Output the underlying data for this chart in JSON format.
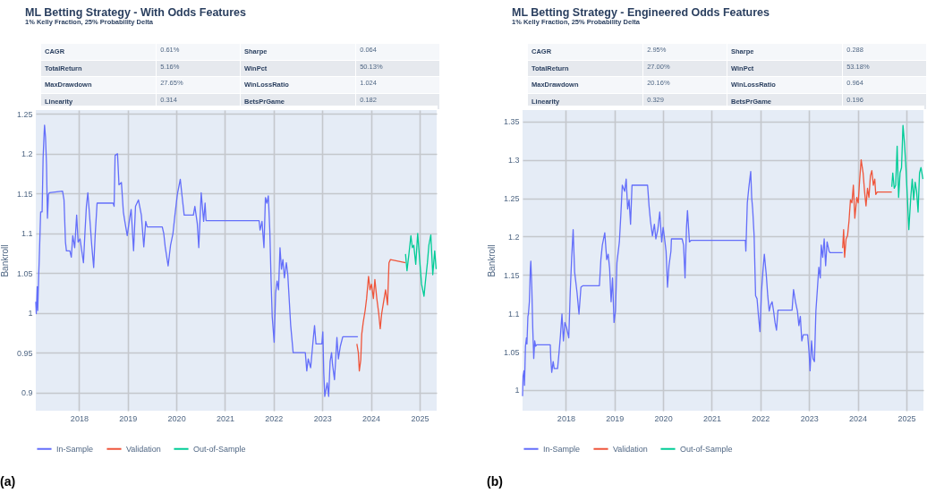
{
  "chart_data": [
    {
      "type": "line",
      "title": "ML Betting Strategy - With Odds Features",
      "subtitle": "1% Kelly Fraction, 25% Probability Delta",
      "ylabel": "Bankroll",
      "annotations": [
        "CAGR",
        "0.61%",
        "Sharpe",
        "0.064",
        "TotalReturn",
        "5.16%",
        "WinPct",
        "50.13%",
        "MaxDrawdown",
        "27.65%",
        "WinLossRatio",
        "1.024",
        "Linearity",
        "0.314",
        "BetsPrGame",
        "0.182",
        "(a)"
      ],
      "xlim": [
        2017.11,
        2025.35
      ],
      "xticks": [
        2018,
        2019,
        2020,
        2021,
        2022,
        2023,
        2024,
        2025
      ],
      "ylim": [
        0.877,
        1.255
      ],
      "yticks": [
        0.9,
        0.95,
        1,
        1.05,
        1.1,
        1.15,
        1.2,
        1.25
      ],
      "grid": true,
      "legend": "bottom",
      "series": [
        {
          "name": "In-Sample",
          "color": "#636efa",
          "x": [
            2017.11,
            2017.12,
            2017.14,
            2017.15,
            2017.17,
            2017.18,
            2017.21,
            2017.24,
            2017.26,
            2017.28,
            2017.29,
            2017.31,
            2017.33,
            2017.35,
            2017.37,
            2017.39,
            2017.66,
            2017.69,
            2017.72,
            2017.74,
            2017.81,
            2017.84,
            2017.87,
            2017.91,
            2017.95,
            2017.98,
            2018.02,
            2018.09,
            2018.12,
            2018.15,
            2018.18,
            2018.21,
            2018.26,
            2018.3,
            2018.33,
            2018.37,
            2018.7,
            2018.72,
            2018.74,
            2018.79,
            2018.82,
            2018.87,
            2018.91,
            2018.94,
            2018.99,
            2019.04,
            2019.07,
            2019.12,
            2019.16,
            2019.22,
            2019.28,
            2019.33,
            2019.37,
            2019.4,
            2019.71,
            2019.74,
            2019.77,
            2019.83,
            2019.88,
            2019.93,
            2019.97,
            2020.02,
            2020.08,
            2020.12,
            2020.16,
            2020.35,
            2020.38,
            2020.43,
            2020.46,
            2020.51,
            2020.56,
            2020.59,
            2020.61,
            2021.7,
            2021.72,
            2021.76,
            2021.8,
            2021.83,
            2021.86,
            2021.89,
            2021.92,
            2021.95,
            2021.97,
            2022.01,
            2022.04,
            2022.07,
            2022.1,
            2022.13,
            2022.16,
            2022.19,
            2022.22,
            2022.26,
            2022.29,
            2022.35,
            2022.4,
            2022.65,
            2022.68,
            2022.71,
            2022.76,
            2022.81,
            2022.84,
            2022.87,
            2022.99,
            2023.01,
            2023.03,
            2023.05,
            2023.1,
            2023.13,
            2023.16,
            2023.19,
            2023.21,
            2023.25,
            2023.3,
            2023.33,
            2023.37,
            2023.42,
            2023.73
          ],
          "values": [
            1.014,
            0.999,
            1.033,
            1.003,
            1.048,
            1.065,
            1.127,
            1.127,
            1.194,
            1.224,
            1.236,
            1.221,
            1.187,
            1.119,
            1.149,
            1.151,
            1.153,
            1.142,
            1.089,
            1.078,
            1.078,
            1.07,
            1.097,
            1.082,
            1.123,
            1.089,
            1.093,
            1.063,
            1.1,
            1.134,
            1.151,
            1.127,
            1.085,
            1.057,
            1.097,
            1.138,
            1.138,
            1.134,
            1.198,
            1.2,
            1.161,
            1.164,
            1.127,
            1.115,
            1.097,
            1.119,
            1.13,
            1.078,
            1.134,
            1.142,
            1.123,
            1.083,
            1.115,
            1.108,
            1.108,
            1.1,
            1.083,
            1.059,
            1.085,
            1.1,
            1.123,
            1.149,
            1.168,
            1.145,
            1.123,
            1.123,
            1.134,
            1.112,
            1.082,
            1.151,
            1.115,
            1.138,
            1.116,
            1.116,
            1.104,
            1.115,
            1.082,
            1.145,
            1.138,
            1.147,
            1.104,
            1.033,
            0.995,
            0.963,
            1.025,
            1.04,
            1.029,
            1.082,
            1.055,
            1.067,
            1.044,
            1.063,
            1.048,
            0.984,
            0.95,
            0.95,
            0.927,
            0.942,
            0.931,
            0.965,
            0.984,
            0.961,
            0.961,
            0.976,
            0.924,
            0.895,
            0.912,
            0.895,
            0.939,
            0.95,
            0.935,
            0.916,
            0.969,
            0.942,
            0.958,
            0.97,
            0.97
          ]
        },
        {
          "name": "Validation",
          "color": "#ef553b",
          "x": [
            2023.71,
            2023.74,
            2023.76,
            2023.79,
            2023.81,
            2023.84,
            2023.88,
            2023.91,
            2023.95,
            2023.98,
            2024.01,
            2024.05,
            2024.08,
            2024.12,
            2024.16,
            2024.19,
            2024.22,
            2024.26,
            2024.3,
            2024.34,
            2024.37,
            2024.4,
            2024.71
          ],
          "values": [
            0.961,
            0.95,
            0.927,
            0.941,
            0.973,
            0.988,
            1.003,
            1.018,
            1.046,
            1.029,
            1.036,
            1.018,
            1.042,
            1.018,
            0.999,
            0.98,
            0.999,
            1.014,
            1.029,
            1.01,
            1.063,
            1.067,
            1.063
          ]
        },
        {
          "name": "Out-of-Sample",
          "color": "#00cc96",
          "x": [
            2024.71,
            2024.74,
            2024.78,
            2024.82,
            2024.85,
            2024.88,
            2024.92,
            2024.96,
            2025.0,
            2025.04,
            2025.09,
            2025.12,
            2025.16,
            2025.19,
            2025.23,
            2025.27,
            2025.31,
            2025.34
          ],
          "values": [
            1.074,
            1.053,
            1.074,
            1.097,
            1.082,
            1.085,
            1.061,
            1.1,
            1.067,
            1.036,
            1.021,
            1.04,
            1.063,
            1.085,
            1.098,
            1.048,
            1.078,
            1.055
          ]
        }
      ]
    },
    {
      "type": "line",
      "title": "ML Betting Strategy - Engineered Odds Features",
      "subtitle": "1% Kelly Fraction, 25% Probability Delta",
      "ylabel": "Bankroll",
      "annotations": [
        "CAGR",
        "2.95%",
        "Sharpe",
        "0.288",
        "TotalReturn",
        "27.00%",
        "WinPct",
        "53.18%",
        "MaxDrawdown",
        "20.16%",
        "WinLossRatio",
        "0.964",
        "Linearity",
        "0.329",
        "BetsPrGame",
        "0.196",
        "(b)"
      ],
      "xlim": [
        2017.11,
        2025.35
      ],
      "xticks": [
        2018,
        2019,
        2020,
        2021,
        2022,
        2023,
        2024,
        2025
      ],
      "ylim": [
        0.973,
        1.365
      ],
      "yticks": [
        1,
        1.05,
        1.1,
        1.15,
        1.2,
        1.25,
        1.3,
        1.35
      ],
      "grid": true,
      "legend": "bottom",
      "series": [
        {
          "name": "In-Sample",
          "color": "#636efa",
          "x": [
            2017.11,
            2017.12,
            2017.14,
            2017.15,
            2017.17,
            2017.19,
            2017.2,
            2017.22,
            2017.23,
            2017.25,
            2017.27,
            2017.28,
            2017.3,
            2017.32,
            2017.34,
            2017.36,
            2017.38,
            2017.4,
            2017.68,
            2017.69,
            2017.71,
            2017.74,
            2017.76,
            2017.83,
            2017.86,
            2017.89,
            2017.92,
            2017.95,
            2017.98,
            2018.02,
            2018.06,
            2018.09,
            2018.12,
            2018.15,
            2018.18,
            2018.23,
            2018.27,
            2018.31,
            2018.35,
            2018.69,
            2018.72,
            2018.75,
            2018.8,
            2018.84,
            2018.87,
            2018.9,
            2018.93,
            2018.96,
            2018.99,
            2019.02,
            2019.05,
            2019.1,
            2019.13,
            2019.16,
            2019.21,
            2019.24,
            2019.27,
            2019.3,
            2019.33,
            2019.36,
            2019.68,
            2019.71,
            2019.74,
            2019.78,
            2019.82,
            2019.85,
            2019.89,
            2019.93,
            2019.97,
            2020.0,
            2020.03,
            2020.06,
            2020.09,
            2020.12,
            2020.16,
            2020.17,
            2020.39,
            2020.42,
            2020.45,
            2020.48,
            2020.5,
            2020.54,
            2020.57,
            2021.69,
            2021.7,
            2021.73,
            2021.76,
            2021.8,
            2021.82,
            2021.84,
            2021.87,
            2021.9,
            2021.93,
            2021.96,
            2021.99,
            2022.02,
            2022.05,
            2022.08,
            2022.12,
            2022.15,
            2022.18,
            2022.21,
            2022.24,
            2022.27,
            2022.3,
            2022.33,
            2022.36,
            2022.65,
            2022.68,
            2022.72,
            2022.76,
            2022.79,
            2022.82,
            2022.85,
            2022.88,
            2022.97,
            2023.0,
            2023.02,
            2023.05,
            2023.08,
            2023.11,
            2023.14,
            2023.17,
            2023.2,
            2023.23,
            2023.25,
            2023.28,
            2023.31,
            2023.34,
            2023.37,
            2023.41,
            2023.43,
            2023.69
          ],
          "values": [
            0.992,
            1.018,
            1.025,
            1.006,
            1.057,
            1.068,
            1.06,
            1.096,
            1.099,
            1.115,
            1.158,
            1.168,
            1.134,
            1.08,
            1.041,
            1.064,
            1.057,
            1.059,
            1.059,
            1.041,
            1.023,
            1.037,
            1.028,
            1.028,
            1.049,
            1.072,
            1.099,
            1.064,
            1.088,
            1.08,
            1.068,
            1.127,
            1.173,
            1.209,
            1.154,
            1.127,
            1.099,
            1.134,
            1.136,
            1.136,
            1.17,
            1.189,
            1.205,
            1.17,
            1.177,
            1.158,
            1.115,
            1.146,
            1.088,
            1.103,
            1.166,
            1.193,
            1.228,
            1.267,
            1.259,
            1.275,
            1.236,
            1.248,
            1.216,
            1.267,
            1.267,
            1.24,
            1.22,
            1.201,
            1.216,
            1.197,
            1.209,
            1.232,
            1.193,
            1.212,
            1.197,
            1.181,
            1.134,
            1.162,
            1.181,
            1.197,
            1.197,
            1.189,
            1.146,
            1.212,
            1.234,
            1.193,
            1.195,
            1.195,
            1.181,
            1.244,
            1.263,
            1.285,
            1.251,
            1.236,
            1.201,
            1.123,
            1.119,
            1.096,
            1.076,
            1.127,
            1.154,
            1.177,
            1.15,
            1.123,
            1.103,
            1.111,
            1.115,
            1.103,
            1.088,
            1.078,
            1.104,
            1.104,
            1.131,
            1.115,
            1.103,
            1.084,
            1.096,
            1.064,
            1.072,
            1.072,
            1.049,
            1.025,
            1.064,
            1.041,
            1.037,
            1.103,
            1.131,
            1.16,
            1.146,
            1.189,
            1.173,
            1.197,
            1.162,
            1.193,
            1.181,
            1.179,
            1.179
          ]
        },
        {
          "name": "Validation",
          "color": "#ef553b",
          "x": [
            2023.69,
            2023.71,
            2023.73,
            2023.76,
            2023.79,
            2023.82,
            2023.85,
            2023.88,
            2023.91,
            2023.94,
            2023.98,
            2024.01,
            2024.04,
            2024.07,
            2024.11,
            2024.14,
            2024.17,
            2024.2,
            2024.23,
            2024.26,
            2024.29,
            2024.32,
            2024.35,
            2024.37,
            2024.4,
            2024.7
          ],
          "values": [
            1.185,
            1.209,
            1.173,
            1.197,
            1.201,
            1.22,
            1.248,
            1.244,
            1.267,
            1.224,
            1.251,
            1.244,
            1.275,
            1.3,
            1.283,
            1.259,
            1.24,
            1.263,
            1.251,
            1.279,
            1.286,
            1.267,
            1.275,
            1.255,
            1.258,
            1.258
          ]
        },
        {
          "name": "Out-of-Sample",
          "color": "#00cc96",
          "x": [
            2024.7,
            2024.72,
            2024.75,
            2024.78,
            2024.81,
            2024.84,
            2024.87,
            2024.9,
            2024.93,
            2024.96,
            2024.99,
            2025.02,
            2025.05,
            2025.09,
            2025.12,
            2025.15,
            2025.18,
            2025.21,
            2025.24,
            2025.27,
            2025.3,
            2025.34
          ],
          "values": [
            1.265,
            1.283,
            1.263,
            1.267,
            1.318,
            1.251,
            1.283,
            1.29,
            1.345,
            1.322,
            1.29,
            1.251,
            1.209,
            1.251,
            1.275,
            1.248,
            1.271,
            1.259,
            1.232,
            1.283,
            1.29,
            1.275
          ]
        }
      ]
    }
  ]
}
